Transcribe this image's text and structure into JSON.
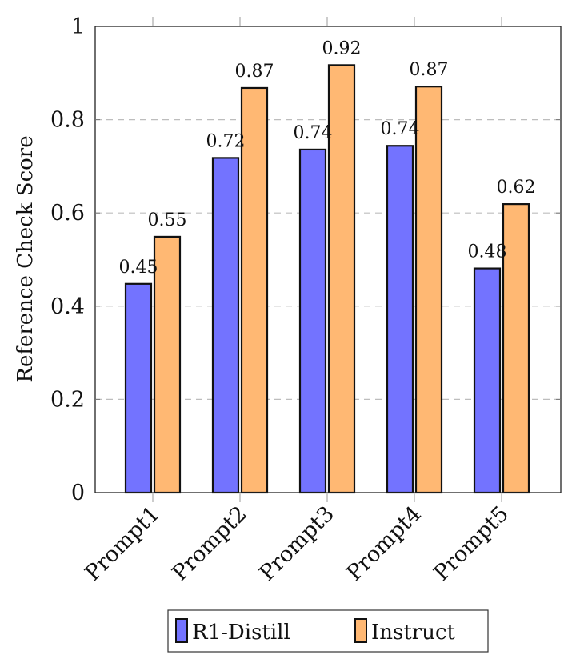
{
  "chart_data": {
    "type": "bar",
    "title": "",
    "xlabel": "",
    "ylabel": "Reference Check Score",
    "ylim": [
      0,
      1
    ],
    "yticks": [
      "0",
      "0.2",
      "0.4",
      "0.6",
      "0.8",
      "1"
    ],
    "ytick_values": [
      0,
      0.2,
      0.4,
      0.6,
      0.8,
      1
    ],
    "grid": "horizontal dashed",
    "categories": [
      "Prompt1",
      "Prompt2",
      "Prompt3",
      "Prompt4",
      "Prompt5"
    ],
    "series": [
      {
        "name": "R1-Distill",
        "color": "#7373ff",
        "values": [
          0.448,
          0.718,
          0.736,
          0.744,
          0.481
        ],
        "labels": [
          "0.45",
          "0.72",
          "0.74",
          "0.74",
          "0.48"
        ]
      },
      {
        "name": "Instruct",
        "color": "#ffb873",
        "values": [
          0.549,
          0.868,
          0.917,
          0.871,
          0.619
        ],
        "labels": [
          "0.55",
          "0.87",
          "0.92",
          "0.87",
          "0.62"
        ]
      }
    ],
    "legend_position": "bottom"
  }
}
